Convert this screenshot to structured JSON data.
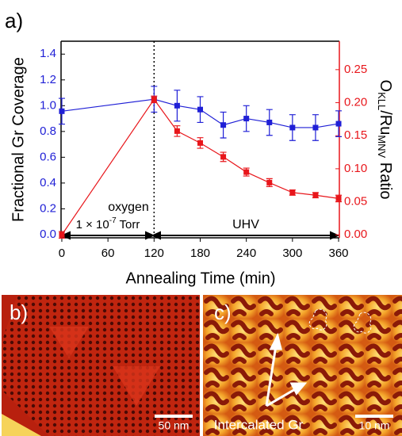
{
  "chart_data": {
    "type": "line",
    "panel_label": "a)",
    "xlabel": "Annealing Time (min)",
    "ylabel": "Fractional Gr Coverage",
    "y2label": [
      "O",
      "KLL",
      "/Ru",
      "MNV",
      " Ratio"
    ],
    "x": [
      0,
      120,
      150,
      180,
      210,
      240,
      270,
      300,
      330,
      360
    ],
    "xlim": [
      -1,
      361
    ],
    "xticks": [
      0,
      60,
      120,
      180,
      240,
      300,
      360
    ],
    "ylim": [
      -0.025,
      1.5
    ],
    "yticks": [
      {
        "value": 0,
        "label": "0.0"
      },
      0.2,
      0.4,
      0.6,
      0.8,
      {
        "value": 1,
        "label": "1.0"
      },
      1.2,
      1.4
    ],
    "y2lim": [
      -0.0045,
      0.293
    ],
    "y2ticks": [
      {
        "value": 0,
        "label": "0.00"
      },
      {
        "value": 0.05,
        "label": "0.05"
      },
      {
        "value": 0.1,
        "label": "0.10"
      },
      {
        "value": 0.15,
        "label": "0.15"
      },
      {
        "value": 0.2,
        "label": "0.20"
      },
      {
        "value": 0.25,
        "label": "0.25"
      }
    ],
    "divider_x": 120,
    "annotations": {
      "oxygen": "oxygen",
      "pressure": [
        "1 × 10",
        "-7",
        " Torr"
      ],
      "uhv": "UHV"
    },
    "series": [
      {
        "color": "#1f1fd6",
        "axis": "y",
        "values": [
          0.957,
          1.05,
          1.0,
          0.97,
          0.85,
          0.9,
          0.87,
          0.83,
          0.83,
          0.86
        ],
        "errors": [
          0.1,
          0.1,
          0.12,
          0.1,
          0.1,
          0.1,
          0.1,
          0.1,
          0.1,
          0.1
        ]
      },
      {
        "color": "#e8161b",
        "axis": "y2",
        "values": [
          0.0,
          0.205,
          0.157,
          0.139,
          0.118,
          0.095,
          0.079,
          0.064,
          0.06,
          0.055
        ],
        "errors": [
          0.005,
          0.005,
          0.008,
          0.008,
          0.007,
          0.006,
          0.006,
          0.004,
          0.004,
          0.005
        ]
      }
    ]
  },
  "images": [
    {
      "label": "b)",
      "scale_bar": "50 nm"
    },
    {
      "label": "c)",
      "scale_bar": "10 nm",
      "annotation": "Intercalated Gr"
    }
  ]
}
